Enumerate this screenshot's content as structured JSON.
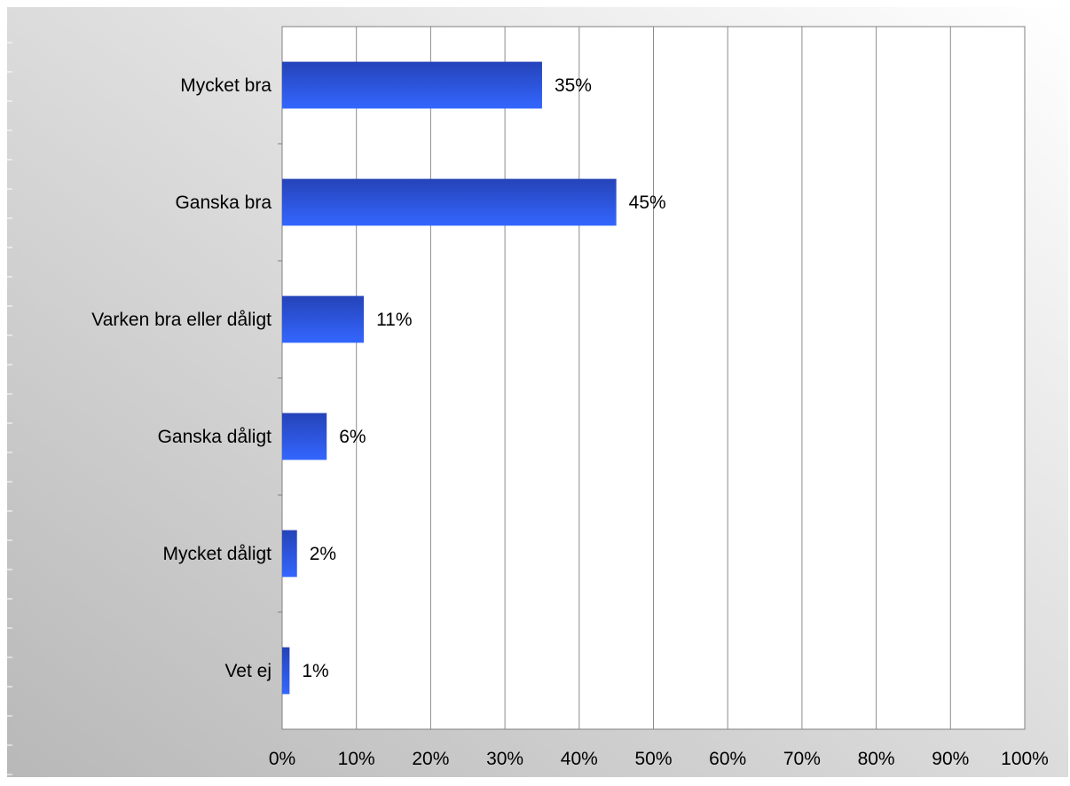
{
  "chart_data": {
    "type": "bar",
    "orientation": "horizontal",
    "categories": [
      "Mycket bra",
      "Ganska bra",
      "Varken bra eller dåligt",
      "Ganska dåligt",
      "Mycket dåligt",
      "Vet ej"
    ],
    "values": [
      35,
      45,
      11,
      6,
      2,
      1
    ],
    "data_labels": [
      "35%",
      "45%",
      "11%",
      "6%",
      "2%",
      "1%"
    ],
    "x_ticks": [
      "0%",
      "10%",
      "20%",
      "30%",
      "40%",
      "50%",
      "60%",
      "70%",
      "80%",
      "90%",
      "100%"
    ],
    "xlim": [
      0,
      100
    ],
    "grid": "vertical",
    "legend": "none",
    "title": "",
    "xlabel": "",
    "ylabel": ""
  },
  "colors": {
    "bar_top": "#2543b8",
    "bar_bottom": "#3366ff",
    "gridline": "#8c8c8c",
    "plot_border": "#808080",
    "background_light": "#ffffff",
    "background_dark": "#b8b8b8"
  }
}
